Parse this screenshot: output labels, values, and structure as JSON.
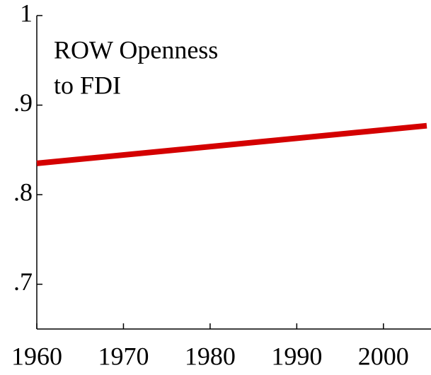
{
  "chart_data": {
    "type": "line",
    "title": [
      "ROW Openness",
      "to FDI"
    ],
    "x": [
      1960,
      2005
    ],
    "series": [
      {
        "color": "#d40000",
        "values": [
          0.835,
          0.877
        ]
      }
    ],
    "xlim": [
      1960,
      2005
    ],
    "xticks": [
      1960,
      1970,
      1980,
      1990,
      2000
    ],
    "ylim": [
      0.65,
      1
    ],
    "yticks": [
      {
        "value": 0.7,
        "label": ".7"
      },
      {
        "value": 0.8,
        "label": ".8"
      },
      {
        "value": 0.9,
        "label": ".9"
      },
      1
    ]
  }
}
